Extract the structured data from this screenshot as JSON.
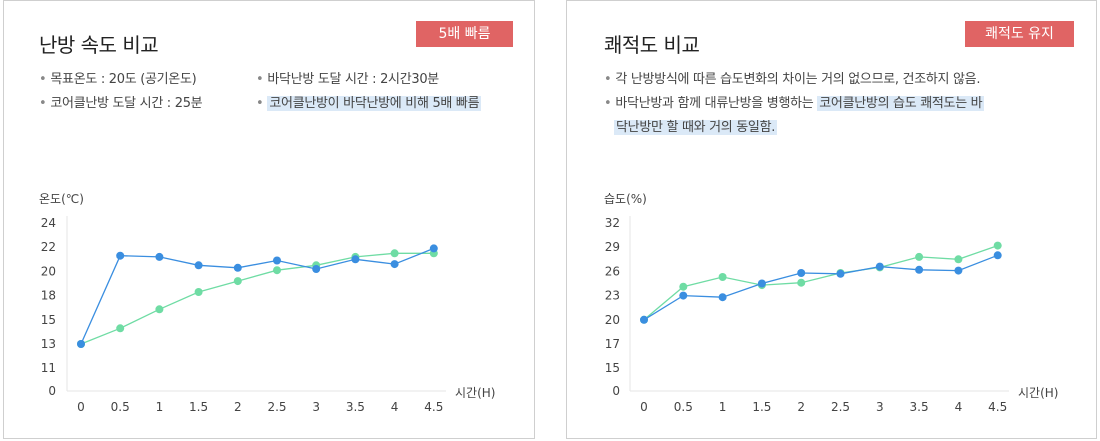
{
  "left": {
    "title": "난방 속도 비교",
    "badge": "5배 빠름",
    "bullets": {
      "b1": "목표온도 : 20도 (공기온도)",
      "b2": "바닥난방 도달 시간 : 2시간30분",
      "b3": "코어클난방 도달 시간 : 25분",
      "b4": "코어클난방이 바닥난방에 비해 5배 빠름"
    }
  },
  "right": {
    "title": "쾌적도 비교",
    "badge": "쾌적도 유지",
    "bullets": {
      "b1": "각 난방방식에 따른 습도변화의 차이는 거의 없으므로, 건조하지 않음.",
      "b2a": "바닥난방과 함께 대류난방을  병행하는 ",
      "b2b": "코어클난방의 습도 쾌적도는 바",
      "b2c": "닥난방만 할 때와 거의 동일함."
    }
  },
  "colors": {
    "blue": "#3a8ee0",
    "green": "#6fdca4",
    "badge": "#e06464",
    "highlight": "#dbe9f7"
  },
  "chart_data": [
    {
      "type": "line",
      "ylabel": "온도(℃)",
      "xlabel": "시간(H)",
      "x": [
        "0",
        "0.5",
        "1",
        "1.5",
        "2",
        "2.5",
        "3",
        "3.5",
        "4",
        "4.5"
      ],
      "yticks": [
        "0",
        "11",
        "13",
        "15",
        "18",
        "20",
        "22",
        "24"
      ],
      "series": [
        {
          "color": "#3a8ee0",
          "values": [
            13,
            21.3,
            21.2,
            20.5,
            20.3,
            20.9,
            20.2,
            21,
            20.6,
            21.9
          ]
        },
        {
          "color": "#6fdca4",
          "values": [
            13,
            14.3,
            16.3,
            18.3,
            19.2,
            20.1,
            20.5,
            21.2,
            21.5,
            21.5
          ]
        }
      ]
    },
    {
      "type": "line",
      "ylabel": "습도(%)",
      "xlabel": "시간(H)",
      "x": [
        "0",
        "0.5",
        "1",
        "1.5",
        "2",
        "2.5",
        "3",
        "3.5",
        "4",
        "4.5"
      ],
      "yticks": [
        "0",
        "15",
        "17",
        "20",
        "23",
        "26",
        "29",
        "32"
      ],
      "series": [
        {
          "color": "#3a8ee0",
          "values": [
            20,
            23,
            22.8,
            24.5,
            25.8,
            25.7,
            26.6,
            26.2,
            26.1,
            28
          ]
        },
        {
          "color": "#6fdca4",
          "values": [
            20,
            24.1,
            25.3,
            24.3,
            24.6,
            25.8,
            26.5,
            27.8,
            27.5,
            29.2
          ]
        }
      ]
    }
  ]
}
